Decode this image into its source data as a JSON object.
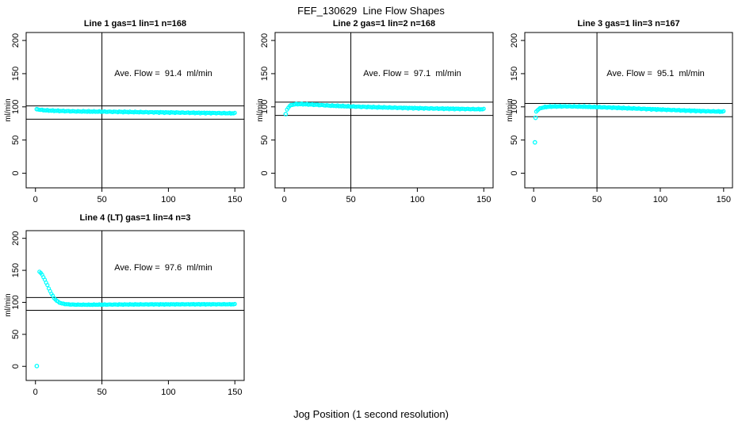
{
  "page": {
    "main_title": "FEF_130629  Line Flow Shapes",
    "x_axis_label": "Jog Position (1 second resolution)"
  },
  "colors": {
    "points": "#00FFFF",
    "axis": "#000000",
    "text": "#000000",
    "background": "#FFFFFF"
  },
  "chart_data": [
    {
      "type": "scatter",
      "title": "Line 1 gas=1 lin=1 n=168",
      "ylabel": "ml/min",
      "n": 168,
      "ave_flow": 91.4,
      "ave_flow_label": "Ave. Flow =  91.4  ml/min",
      "xlim": [
        0,
        150
      ],
      "ylim": [
        0,
        200
      ],
      "xticks": [
        0,
        50,
        100,
        150
      ],
      "yticks": [
        0,
        50,
        100,
        150,
        200
      ],
      "ref_hlines": [
        101.4,
        81.4
      ],
      "ref_vline": 50,
      "outlier_points": [
        [
          1,
          96.5
        ]
      ],
      "trend": [
        [
          2,
          96.2
        ],
        [
          3,
          95.8
        ],
        [
          5,
          95.2
        ],
        [
          10,
          94.5
        ],
        [
          20,
          93.8
        ],
        [
          30,
          93.2
        ],
        [
          50,
          92.8
        ],
        [
          70,
          92.3
        ],
        [
          90,
          91.8
        ],
        [
          110,
          91.3
        ],
        [
          130,
          90.8
        ],
        [
          150,
          90.3
        ]
      ]
    },
    {
      "type": "scatter",
      "title": "Line 2 gas=1 lin=2 n=168",
      "ylabel": "ml/min",
      "n": 168,
      "ave_flow": 97.1,
      "ave_flow_label": "Ave. Flow =  97.1  ml/min",
      "xlim": [
        0,
        150
      ],
      "ylim": [
        0,
        200
      ],
      "xticks": [
        0,
        50,
        100,
        150
      ],
      "yticks": [
        0,
        50,
        100,
        150,
        200
      ],
      "ref_hlines": [
        107.1,
        87.1
      ],
      "ref_vline": 50,
      "outlier_points": [
        [
          1,
          89
        ]
      ],
      "trend": [
        [
          2,
          96
        ],
        [
          3,
          99
        ],
        [
          4,
          101.5
        ],
        [
          6,
          103.2
        ],
        [
          8,
          104
        ],
        [
          12,
          104.2
        ],
        [
          18,
          103.7
        ],
        [
          25,
          103
        ],
        [
          35,
          101.8
        ],
        [
          50,
          100.6
        ],
        [
          70,
          99.4
        ],
        [
          90,
          98.4
        ],
        [
          110,
          97.6
        ],
        [
          130,
          97
        ],
        [
          150,
          96.4
        ]
      ]
    },
    {
      "type": "scatter",
      "title": "Line 3 gas=1 lin=3 n=167",
      "ylabel": "ml/min",
      "n": 167,
      "ave_flow": 95.1,
      "ave_flow_label": "Ave. Flow =  95.1  ml/min",
      "xlim": [
        0,
        150
      ],
      "ylim": [
        0,
        200
      ],
      "xticks": [
        0,
        50,
        100,
        150
      ],
      "yticks": [
        0,
        50,
        100,
        150,
        200
      ],
      "ref_hlines": [
        105.1,
        85.1
      ],
      "ref_vline": 50,
      "outlier_points": [
        [
          1,
          46.5
        ],
        [
          1.5,
          83.5
        ]
      ],
      "trend": [
        [
          2,
          93
        ],
        [
          3,
          95
        ],
        [
          4,
          96.5
        ],
        [
          6,
          98.5
        ],
        [
          10,
          100
        ],
        [
          15,
          100.6
        ],
        [
          25,
          100.8
        ],
        [
          40,
          100.3
        ],
        [
          60,
          99
        ],
        [
          80,
          97.5
        ],
        [
          100,
          96
        ],
        [
          120,
          94.5
        ],
        [
          135,
          93.5
        ],
        [
          150,
          92.8
        ]
      ]
    },
    {
      "type": "scatter",
      "title": "Line 4 (LT) gas=1 lin=4 n=3",
      "ylabel": "ml/min",
      "n": 3,
      "ave_flow": 97.6,
      "ave_flow_label": "Ave. Flow =  97.6  ml/min",
      "xlim": [
        0,
        150
      ],
      "ylim": [
        0,
        200
      ],
      "xticks": [
        0,
        50,
        100,
        150
      ],
      "yticks": [
        0,
        50,
        100,
        150,
        200
      ],
      "ref_hlines": [
        107.6,
        87.6
      ],
      "ref_vline": 50,
      "outlier_points": [
        [
          1,
          0.5
        ]
      ],
      "trend": [
        [
          3,
          148
        ],
        [
          4,
          146
        ],
        [
          5,
          143
        ],
        [
          6,
          139.5
        ],
        [
          7,
          135.5
        ],
        [
          8,
          131
        ],
        [
          9,
          126.5
        ],
        [
          10,
          122
        ],
        [
          11,
          117.5
        ],
        [
          12,
          113.5
        ],
        [
          13,
          110
        ],
        [
          14,
          107
        ],
        [
          15,
          104.5
        ],
        [
          16,
          102.5
        ],
        [
          17,
          101
        ],
        [
          18,
          99.8
        ],
        [
          19,
          98.9
        ],
        [
          20,
          98.2
        ],
        [
          22,
          97.4
        ],
        [
          25,
          96.8
        ],
        [
          30,
          96.4
        ],
        [
          40,
          96.3
        ],
        [
          60,
          96.6
        ],
        [
          80,
          96.8
        ],
        [
          100,
          96.9
        ],
        [
          120,
          97
        ],
        [
          150,
          97
        ]
      ]
    }
  ]
}
